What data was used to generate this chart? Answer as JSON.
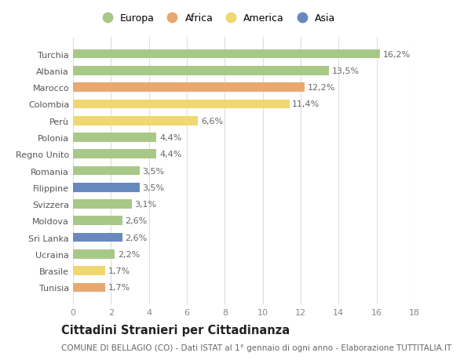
{
  "categories": [
    "Turchia",
    "Albania",
    "Marocco",
    "Colombia",
    "Perù",
    "Polonia",
    "Regno Unito",
    "Romania",
    "Filippine",
    "Svizzera",
    "Moldova",
    "Sri Lanka",
    "Ucraina",
    "Brasile",
    "Tunisia"
  ],
  "values": [
    16.2,
    13.5,
    12.2,
    11.4,
    6.6,
    4.4,
    4.4,
    3.5,
    3.5,
    3.1,
    2.6,
    2.6,
    2.2,
    1.7,
    1.7
  ],
  "labels": [
    "16,2%",
    "13,5%",
    "12,2%",
    "11,4%",
    "6,6%",
    "4,4%",
    "4,4%",
    "3,5%",
    "3,5%",
    "3,1%",
    "2,6%",
    "2,6%",
    "2,2%",
    "1,7%",
    "1,7%"
  ],
  "continent": [
    "Europa",
    "Europa",
    "Africa",
    "America",
    "America",
    "Europa",
    "Europa",
    "Europa",
    "Asia",
    "Europa",
    "Europa",
    "Asia",
    "Europa",
    "America",
    "Africa"
  ],
  "colors": {
    "Europa": "#a8c888",
    "Africa": "#e8a870",
    "America": "#f0d870",
    "Asia": "#6888c0"
  },
  "legend_order": [
    "Europa",
    "Africa",
    "America",
    "Asia"
  ],
  "xlim": [
    0,
    18
  ],
  "xticks": [
    0,
    2,
    4,
    6,
    8,
    10,
    12,
    14,
    16,
    18
  ],
  "title": "Cittadini Stranieri per Cittadinanza",
  "subtitle": "COMUNE DI BELLAGIO (CO) - Dati ISTAT al 1° gennaio di ogni anno - Elaborazione TUTTITALIA.IT",
  "bg_color": "#ffffff",
  "grid_color": "#dddddd",
  "bar_height": 0.55,
  "label_fontsize": 8,
  "tick_fontsize": 8,
  "title_fontsize": 10.5,
  "subtitle_fontsize": 7.5
}
